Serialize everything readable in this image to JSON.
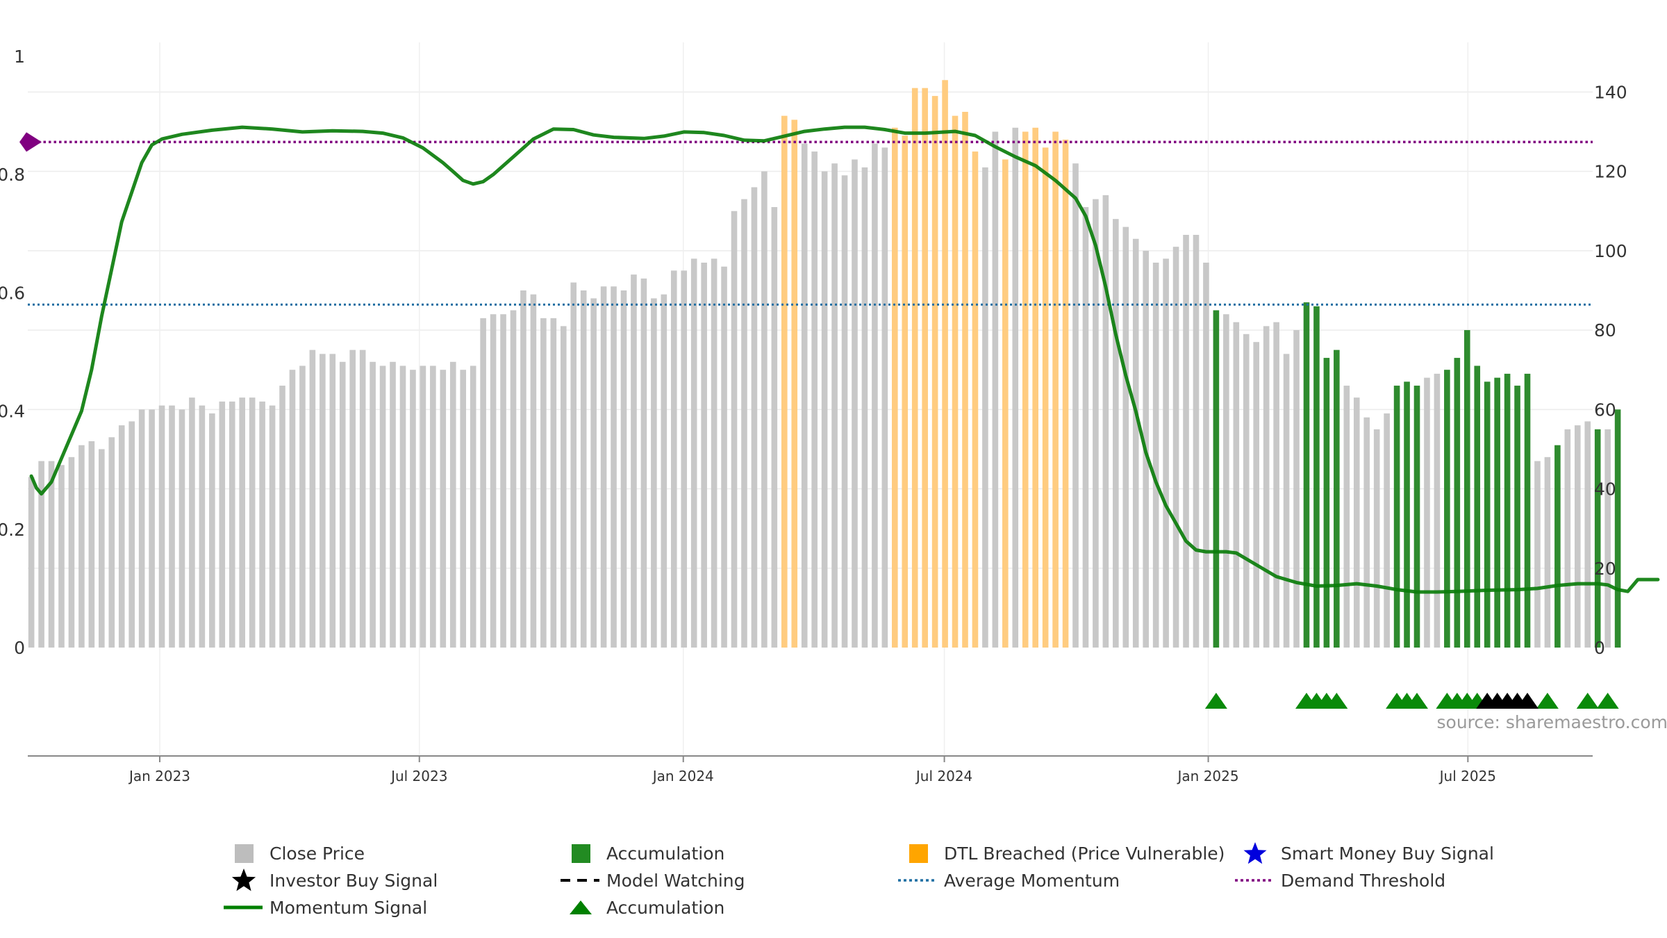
{
  "chart_data": {
    "type": "bar",
    "source_text": "source: sharemaestro.com",
    "left_axis": {
      "range": [
        0,
        1
      ],
      "ticks": [
        0,
        0.2,
        0.4,
        0.6,
        0.8,
        1
      ],
      "tick_labels": [
        "0",
        "0.2",
        "0.4",
        "0.6",
        "0.8",
        "1"
      ]
    },
    "right_axis": {
      "range": [
        0,
        149
      ],
      "ticks": [
        0,
        20,
        40,
        60,
        80,
        100,
        120,
        140
      ],
      "tick_labels": [
        "0",
        "20",
        "40",
        "60",
        "80",
        "100",
        "120",
        "140"
      ]
    },
    "x_axis": {
      "start": "2022-10-01",
      "end": "2025-09-26",
      "ticks": [
        "2023-01-01",
        "2023-07-01",
        "2024-01-01",
        "2024-07-01",
        "2025-01-01",
        "2025-07-01"
      ],
      "tick_labels": [
        "Jan 2023",
        "Jul 2023",
        "Jan 2024",
        "Jul 2024",
        "Jan 2025",
        "Jul 2025"
      ]
    },
    "grid": true,
    "legend_position": "bottom",
    "bar_series": {
      "start_week": "2022-10-03",
      "values": [
        43,
        47,
        47,
        46,
        48,
        51,
        52,
        50,
        53,
        56,
        57,
        60,
        60,
        61,
        61,
        60,
        63,
        61,
        59,
        62,
        62,
        63,
        63,
        62,
        61,
        66,
        70,
        71,
        75,
        74,
        74,
        72,
        75,
        75,
        72,
        71,
        72,
        71,
        70,
        71,
        71,
        70,
        72,
        70,
        71,
        83,
        84,
        84,
        85,
        90,
        89,
        83,
        83,
        81,
        92,
        90,
        88,
        91,
        91,
        90,
        94,
        93,
        88,
        89,
        95,
        95,
        98,
        97,
        98,
        96,
        110,
        113,
        116,
        120,
        111,
        134,
        133,
        127,
        125,
        120,
        122,
        119,
        123,
        121,
        127,
        126,
        131,
        129,
        141,
        141,
        139,
        143,
        134,
        135,
        125,
        121,
        130,
        123,
        131,
        130,
        131,
        126,
        130,
        128,
        122,
        111,
        113,
        114,
        108,
        106,
        103,
        100,
        97,
        98,
        101,
        104,
        104,
        97,
        85,
        84,
        82,
        79,
        77,
        81,
        82,
        74,
        80,
        87,
        86,
        73,
        75,
        66,
        63,
        58,
        55,
        59,
        66,
        67,
        66,
        68,
        69,
        70,
        73,
        80,
        71,
        67,
        68,
        69,
        66,
        69,
        47,
        48,
        51,
        55,
        56,
        57,
        55,
        55,
        60
      ],
      "categories": [
        "grey",
        "grey",
        "grey",
        "grey",
        "grey",
        "grey",
        "grey",
        "grey",
        "grey",
        "grey",
        "grey",
        "grey",
        "grey",
        "grey",
        "grey",
        "grey",
        "grey",
        "grey",
        "grey",
        "grey",
        "grey",
        "grey",
        "grey",
        "grey",
        "grey",
        "grey",
        "grey",
        "grey",
        "grey",
        "grey",
        "grey",
        "grey",
        "grey",
        "grey",
        "grey",
        "grey",
        "grey",
        "grey",
        "grey",
        "grey",
        "grey",
        "grey",
        "grey",
        "grey",
        "grey",
        "grey",
        "grey",
        "grey",
        "grey",
        "grey",
        "grey",
        "grey",
        "grey",
        "grey",
        "grey",
        "grey",
        "grey",
        "grey",
        "grey",
        "grey",
        "grey",
        "grey",
        "grey",
        "grey",
        "grey",
        "grey",
        "grey",
        "grey",
        "grey",
        "grey",
        "grey",
        "grey",
        "grey",
        "grey",
        "grey",
        "orange",
        "orange",
        "grey",
        "grey",
        "grey",
        "grey",
        "grey",
        "grey",
        "grey",
        "grey",
        "grey",
        "orange",
        "orange",
        "orange",
        "orange",
        "orange",
        "orange",
        "orange",
        "orange",
        "orange",
        "grey",
        "grey",
        "orange",
        "grey",
        "orange",
        "orange",
        "orange",
        "orange",
        "orange",
        "grey",
        "grey",
        "grey",
        "grey",
        "grey",
        "grey",
        "grey",
        "grey",
        "grey",
        "grey",
        "grey",
        "grey",
        "grey",
        "grey",
        "green",
        "grey",
        "grey",
        "grey",
        "grey",
        "grey",
        "grey",
        "grey",
        "grey",
        "green",
        "green",
        "green",
        "green",
        "grey",
        "grey",
        "grey",
        "grey",
        "grey",
        "green",
        "green",
        "green",
        "grey",
        "grey",
        "green",
        "green",
        "green",
        "green",
        "green",
        "green",
        "green",
        "green",
        "green",
        "grey",
        "grey",
        "green",
        "grey",
        "grey",
        "grey",
        "green",
        "grey",
        "green"
      ]
    },
    "momentum_signal": [
      [
        0,
        0.29
      ],
      [
        0.5,
        0.27
      ],
      [
        1,
        0.26
      ],
      [
        2,
        0.28
      ],
      [
        3,
        0.32
      ],
      [
        4,
        0.36
      ],
      [
        5,
        0.4
      ],
      [
        6,
        0.47
      ],
      [
        7,
        0.56
      ],
      [
        8,
        0.64
      ],
      [
        9,
        0.72
      ],
      [
        10,
        0.77
      ],
      [
        11,
        0.82
      ],
      [
        12,
        0.85
      ],
      [
        13,
        0.86
      ],
      [
        15,
        0.868
      ],
      [
        18,
        0.875
      ],
      [
        21,
        0.88
      ],
      [
        24,
        0.877
      ],
      [
        27,
        0.872
      ],
      [
        30,
        0.874
      ],
      [
        33,
        0.873
      ],
      [
        35,
        0.87
      ],
      [
        37,
        0.862
      ],
      [
        39,
        0.845
      ],
      [
        41,
        0.82
      ],
      [
        42,
        0.805
      ],
      [
        43,
        0.79
      ],
      [
        44,
        0.784
      ],
      [
        45,
        0.788
      ],
      [
        46,
        0.8
      ],
      [
        48,
        0.83
      ],
      [
        50,
        0.86
      ],
      [
        52,
        0.877
      ],
      [
        54,
        0.876
      ],
      [
        56,
        0.867
      ],
      [
        58,
        0.863
      ],
      [
        61,
        0.861
      ],
      [
        63,
        0.865
      ],
      [
        65,
        0.872
      ],
      [
        67,
        0.871
      ],
      [
        69,
        0.866
      ],
      [
        71,
        0.858
      ],
      [
        73,
        0.857
      ],
      [
        75,
        0.865
      ],
      [
        77,
        0.873
      ],
      [
        79,
        0.877
      ],
      [
        81,
        0.88
      ],
      [
        83,
        0.88
      ],
      [
        85,
        0.876
      ],
      [
        87,
        0.87
      ],
      [
        89,
        0.87
      ],
      [
        92,
        0.873
      ],
      [
        94,
        0.866
      ],
      [
        96,
        0.847
      ],
      [
        98,
        0.83
      ],
      [
        100,
        0.815
      ],
      [
        102,
        0.79
      ],
      [
        104,
        0.76
      ],
      [
        105,
        0.73
      ],
      [
        106,
        0.68
      ],
      [
        107,
        0.61
      ],
      [
        108,
        0.53
      ],
      [
        109,
        0.46
      ],
      [
        110,
        0.4
      ],
      [
        111,
        0.33
      ],
      [
        112,
        0.28
      ],
      [
        113,
        0.24
      ],
      [
        114,
        0.21
      ],
      [
        115,
        0.18
      ],
      [
        116,
        0.165
      ],
      [
        117,
        0.162
      ],
      [
        119,
        0.162
      ],
      [
        120,
        0.16
      ],
      [
        121,
        0.15
      ],
      [
        122,
        0.14
      ],
      [
        124,
        0.12
      ],
      [
        126,
        0.11
      ],
      [
        128,
        0.104
      ],
      [
        130,
        0.105
      ],
      [
        132,
        0.108
      ],
      [
        134,
        0.104
      ],
      [
        136,
        0.098
      ],
      [
        138,
        0.094
      ],
      [
        140,
        0.094
      ],
      [
        142,
        0.095
      ],
      [
        145,
        0.097
      ],
      [
        148,
        0.098
      ],
      [
        150,
        0.1
      ],
      [
        152,
        0.105
      ],
      [
        154,
        0.108
      ],
      [
        156,
        0.108
      ],
      [
        157,
        0.106
      ],
      [
        158,
        0.098
      ],
      [
        159,
        0.095
      ],
      [
        160,
        0.115
      ],
      [
        162,
        0.115
      ]
    ],
    "average_momentum": 0.58,
    "demand_threshold": 0.855,
    "accumulation_markers": [
      118,
      127,
      128,
      129,
      130,
      136,
      137,
      138,
      141,
      142,
      143,
      144,
      151,
      155,
      157
    ],
    "investor_buy_markers": [
      145,
      146,
      147,
      148,
      149
    ],
    "legend": [
      {
        "label": "Close Price",
        "symbol": "grey-square",
        "color": "#bdbdbd"
      },
      {
        "label": "Accumulation",
        "symbol": "green-square",
        "color": "#228b22"
      },
      {
        "label": "DTL Breached (Price Vulnerable)",
        "symbol": "orange-square",
        "color": "#ffa500"
      },
      {
        "label": "Smart Money Buy Signal",
        "symbol": "blue-star",
        "color": "#0000dd"
      },
      {
        "label": "Investor Buy Signal",
        "symbol": "black-star",
        "color": "#000000"
      },
      {
        "label": "Model Watching",
        "symbol": "black-dash",
        "color": "#000000"
      },
      {
        "label": "Average Momentum",
        "symbol": "blue-dotted",
        "color": "#1f6fa3"
      },
      {
        "label": "Demand Threshold",
        "symbol": "purple-dotted",
        "color": "#800080"
      },
      {
        "label": "Momentum Signal",
        "symbol": "green-line",
        "color": "#008000"
      },
      {
        "label": "Accumulation",
        "symbol": "green-triangle",
        "color": "#008000"
      }
    ]
  }
}
